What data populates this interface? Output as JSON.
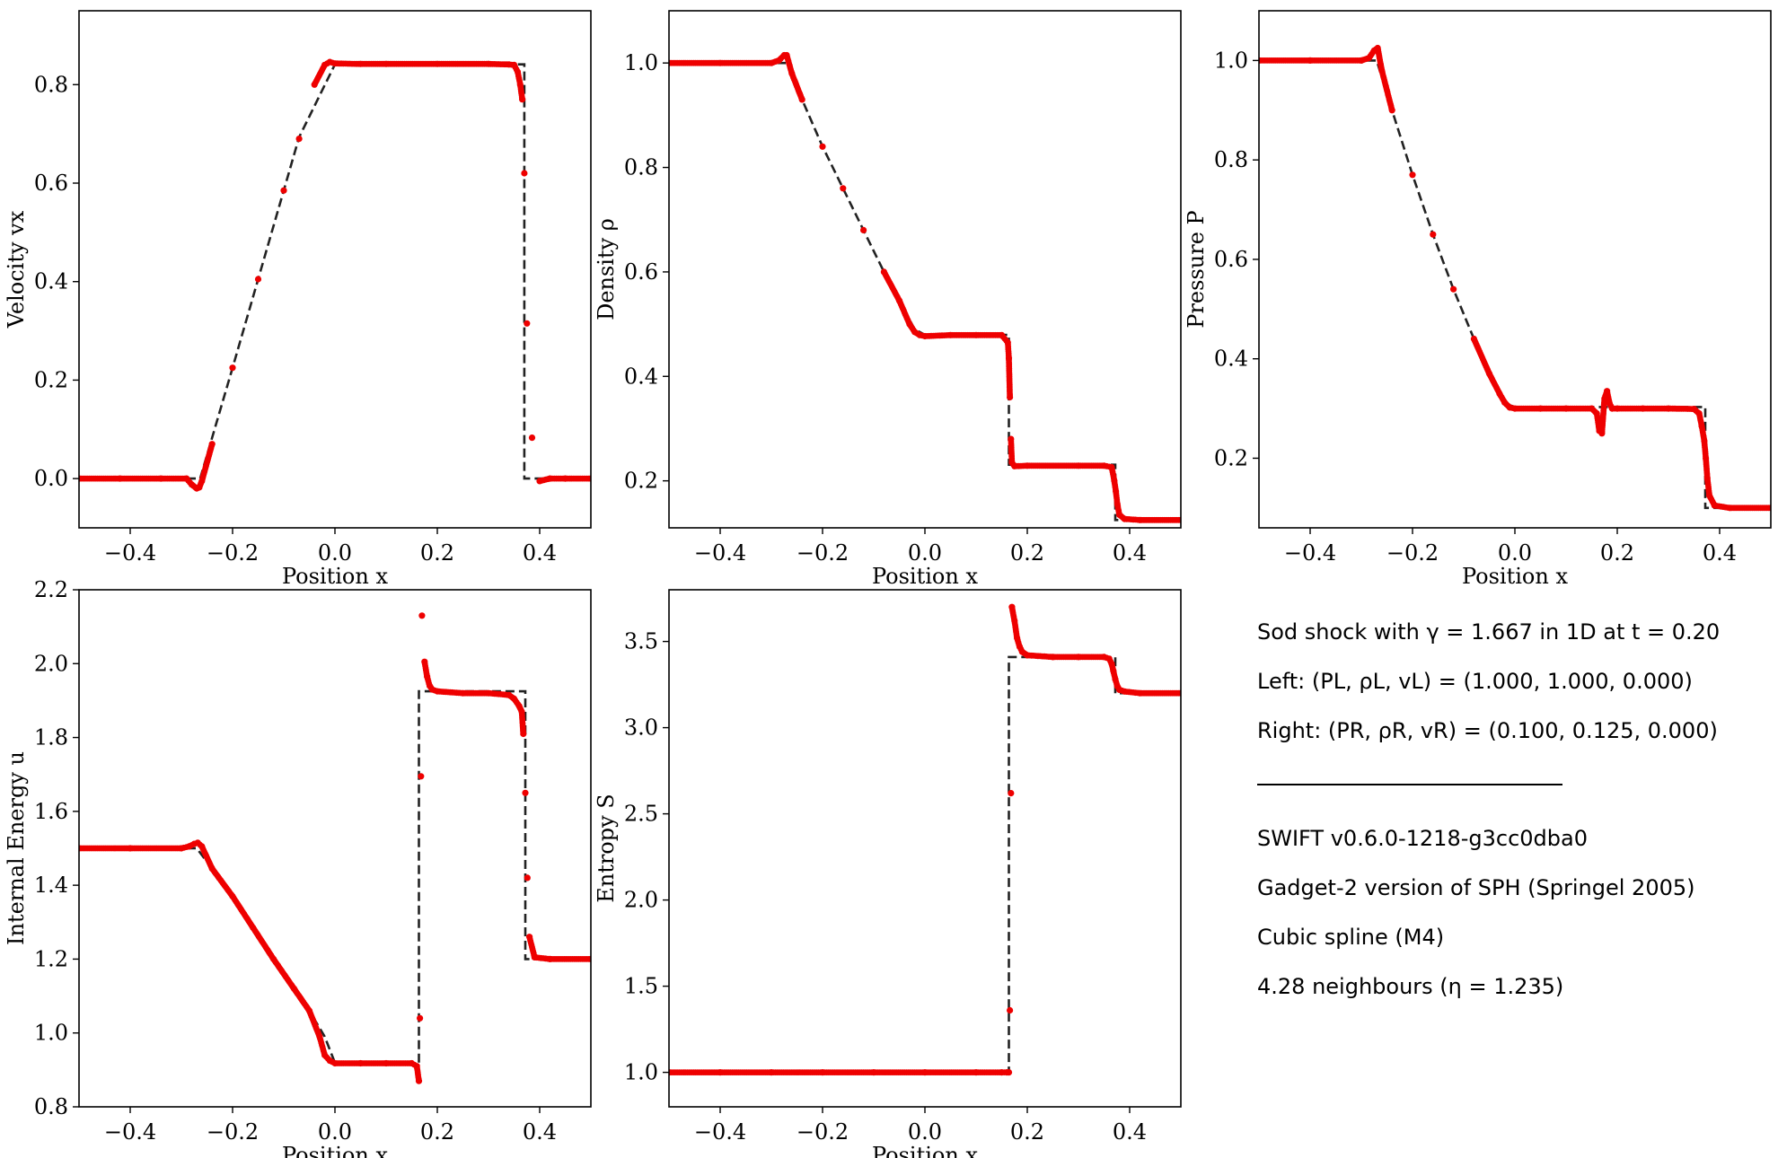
{
  "chart_data": [
    {
      "type": "scatter",
      "xlabel": "Position x",
      "ylabel": "Velocity vx",
      "xlim": [
        -0.5,
        0.5
      ],
      "ylim": [
        -0.1,
        0.95
      ],
      "xticks": [
        "−0.4",
        "−0.2",
        "0.0",
        "0.2",
        "0.4"
      ],
      "xtick_values": [
        -0.4,
        -0.2,
        0.0,
        0.2,
        0.4
      ],
      "yticks": [
        "0.0",
        "0.2",
        "0.4",
        "0.6",
        "0.8"
      ],
      "ytick_values": [
        0.0,
        0.2,
        0.4,
        0.6,
        0.8
      ],
      "series": [
        {
          "kind": "dashed-line",
          "color": "#222222",
          "x": [
            -0.5,
            -0.2856,
            -0.2633,
            -0.2,
            -0.1,
            -0.0702,
            0.0,
            0.1,
            0.2,
            0.3,
            0.37,
            0.37,
            0.5
          ],
          "y": [
            0.0,
            0.0,
            0.0,
            0.225,
            0.585,
            0.6927,
            0.8412,
            0.8412,
            0.8412,
            0.8412,
            0.8412,
            0.0,
            0.0
          ]
        },
        {
          "kind": "dots",
          "color": "#ee0000",
          "x": [
            -0.5,
            -0.42,
            -0.34,
            -0.29,
            -0.28,
            -0.27,
            -0.265,
            -0.26,
            -0.24,
            -0.2,
            -0.15,
            -0.1,
            -0.07,
            -0.04,
            -0.02,
            -0.01,
            0.0,
            0.05,
            0.1,
            0.2,
            0.3,
            0.34,
            0.35,
            0.357,
            0.362,
            0.366,
            0.37,
            0.375,
            0.385,
            0.4,
            0.42,
            0.45,
            0.5
          ],
          "y": [
            0.0,
            0.0,
            0.0,
            0.0,
            -0.012,
            -0.02,
            -0.018,
            -0.005,
            0.07,
            0.225,
            0.405,
            0.585,
            0.69,
            0.8,
            0.84,
            0.846,
            0.843,
            0.842,
            0.842,
            0.842,
            0.842,
            0.841,
            0.84,
            0.826,
            0.8,
            0.77,
            0.62,
            0.315,
            0.083,
            -0.005,
            0.0,
            0.0,
            0.0
          ]
        }
      ]
    },
    {
      "type": "scatter",
      "xlabel": "Position x",
      "ylabel": "Density ρ",
      "xlim": [
        -0.5,
        0.5
      ],
      "ylim": [
        0.11,
        1.1
      ],
      "xticks": [
        "−0.4",
        "−0.2",
        "0.0",
        "0.2",
        "0.4"
      ],
      "xtick_values": [
        -0.4,
        -0.2,
        0.0,
        0.2,
        0.4
      ],
      "yticks": [
        "0.2",
        "0.4",
        "0.6",
        "0.8",
        "1.0"
      ],
      "ytick_values": [
        0.2,
        0.4,
        0.6,
        0.8,
        1.0
      ],
      "series": [
        {
          "kind": "dashed-line",
          "color": "#222222",
          "x": [
            -0.5,
            -0.27,
            -0.24,
            -0.2,
            -0.16,
            -0.12,
            -0.08,
            -0.05,
            -0.02,
            0.0,
            0.1,
            0.164,
            0.164,
            0.2,
            0.3,
            0.372,
            0.372,
            0.5
          ],
          "y": [
            1.0,
            1.0,
            0.93,
            0.84,
            0.76,
            0.68,
            0.6,
            0.545,
            0.49,
            0.4795,
            0.4795,
            0.4795,
            0.2308,
            0.2308,
            0.2308,
            0.2308,
            0.125,
            0.125
          ]
        },
        {
          "kind": "dots",
          "color": "#ee0000",
          "x": [
            -0.5,
            -0.4,
            -0.3,
            -0.285,
            -0.275,
            -0.27,
            -0.26,
            -0.24,
            -0.2,
            -0.16,
            -0.12,
            -0.08,
            -0.05,
            -0.03,
            -0.02,
            -0.01,
            0.0,
            0.05,
            0.1,
            0.15,
            0.162,
            0.164,
            0.166,
            0.168,
            0.17,
            0.175,
            0.2,
            0.3,
            0.35,
            0.365,
            0.37,
            0.373,
            0.376,
            0.38,
            0.39,
            0.42,
            0.5
          ],
          "y": [
            1.0,
            1.0,
            1.0,
            1.005,
            1.015,
            1.015,
            0.98,
            0.93,
            0.84,
            0.76,
            0.68,
            0.6,
            0.545,
            0.5,
            0.485,
            0.479,
            0.477,
            0.479,
            0.479,
            0.479,
            0.465,
            0.435,
            0.36,
            0.28,
            0.235,
            0.228,
            0.229,
            0.229,
            0.229,
            0.226,
            0.2,
            0.18,
            0.155,
            0.135,
            0.127,
            0.125,
            0.125
          ]
        }
      ]
    },
    {
      "type": "scatter",
      "xlabel": "Position x",
      "ylabel": "Pressure P",
      "xlim": [
        -0.5,
        0.5
      ],
      "ylim": [
        0.06,
        1.1
      ],
      "xticks": [
        "−0.4",
        "−0.2",
        "0.0",
        "0.2",
        "0.4"
      ],
      "xtick_values": [
        -0.4,
        -0.2,
        0.0,
        0.2,
        0.4
      ],
      "yticks": [
        "0.2",
        "0.4",
        "0.6",
        "0.8",
        "1.0"
      ],
      "ytick_values": [
        0.2,
        0.4,
        0.6,
        0.8,
        1.0
      ],
      "series": [
        {
          "kind": "dashed-line",
          "color": "#222222",
          "x": [
            -0.5,
            -0.27,
            -0.24,
            -0.2,
            -0.16,
            -0.12,
            -0.08,
            -0.05,
            -0.02,
            0.0,
            0.1,
            0.2,
            0.3,
            0.372,
            0.372,
            0.5
          ],
          "y": [
            1.0,
            1.0,
            0.9,
            0.77,
            0.65,
            0.54,
            0.44,
            0.37,
            0.31,
            0.303,
            0.303,
            0.303,
            0.303,
            0.303,
            0.1,
            0.1
          ]
        },
        {
          "kind": "dots",
          "color": "#ee0000",
          "x": [
            -0.5,
            -0.4,
            -0.3,
            -0.285,
            -0.275,
            -0.268,
            -0.26,
            -0.24,
            -0.2,
            -0.16,
            -0.12,
            -0.08,
            -0.05,
            -0.03,
            -0.02,
            -0.01,
            0.0,
            0.05,
            0.1,
            0.15,
            0.16,
            0.165,
            0.17,
            0.175,
            0.18,
            0.185,
            0.19,
            0.2,
            0.25,
            0.3,
            0.35,
            0.36,
            0.365,
            0.37,
            0.373,
            0.376,
            0.38,
            0.39,
            0.42,
            0.5
          ],
          "y": [
            1.0,
            1.0,
            1.0,
            1.005,
            1.02,
            1.025,
            0.98,
            0.9,
            0.77,
            0.65,
            0.54,
            0.44,
            0.37,
            0.33,
            0.312,
            0.302,
            0.3,
            0.3,
            0.3,
            0.3,
            0.29,
            0.255,
            0.25,
            0.32,
            0.335,
            0.31,
            0.3,
            0.3,
            0.3,
            0.3,
            0.299,
            0.29,
            0.265,
            0.235,
            0.2,
            0.16,
            0.125,
            0.105,
            0.1,
            0.1
          ]
        }
      ]
    },
    {
      "type": "scatter",
      "xlabel": "Position x",
      "ylabel": "Internal Energy u",
      "xlim": [
        -0.5,
        0.5
      ],
      "ylim": [
        0.8,
        2.2
      ],
      "xticks": [
        "−0.4",
        "−0.2",
        "0.0",
        "0.2",
        "0.4"
      ],
      "xtick_values": [
        -0.4,
        -0.2,
        0.0,
        0.2,
        0.4
      ],
      "yticks": [
        "0.8",
        "1.0",
        "1.2",
        "1.4",
        "1.6",
        "1.8",
        "2.0",
        "2.2"
      ],
      "ytick_values": [
        0.8,
        1.0,
        1.2,
        1.4,
        1.6,
        1.8,
        2.0,
        2.2
      ],
      "series": [
        {
          "kind": "dashed-line",
          "color": "#222222",
          "x": [
            -0.5,
            -0.27,
            -0.24,
            -0.2,
            -0.16,
            -0.12,
            -0.08,
            -0.05,
            -0.02,
            0.0,
            0.1,
            0.164,
            0.164,
            0.2,
            0.3,
            0.372,
            0.372,
            0.5
          ],
          "y": [
            1.5,
            1.5,
            1.445,
            1.37,
            1.285,
            1.2,
            1.12,
            1.06,
            0.99,
            0.919,
            0.919,
            0.919,
            1.925,
            1.925,
            1.925,
            1.925,
            1.2,
            1.2
          ]
        },
        {
          "kind": "dots",
          "color": "#ee0000",
          "x": [
            -0.5,
            -0.4,
            -0.3,
            -0.285,
            -0.275,
            -0.268,
            -0.26,
            -0.24,
            -0.2,
            -0.16,
            -0.12,
            -0.08,
            -0.05,
            -0.03,
            -0.02,
            -0.01,
            0.0,
            0.05,
            0.1,
            0.15,
            0.16,
            0.164,
            0.166,
            0.168,
            0.17,
            0.175,
            0.18,
            0.185,
            0.19,
            0.2,
            0.25,
            0.3,
            0.34,
            0.35,
            0.36,
            0.365,
            0.368,
            0.372,
            0.376,
            0.38,
            0.39,
            0.42,
            0.5
          ],
          "y": [
            1.5,
            1.5,
            1.5,
            1.505,
            1.512,
            1.515,
            1.505,
            1.445,
            1.37,
            1.285,
            1.2,
            1.12,
            1.06,
            0.99,
            0.94,
            0.925,
            0.918,
            0.918,
            0.918,
            0.918,
            0.91,
            0.87,
            1.04,
            1.695,
            2.13,
            2.005,
            1.965,
            1.94,
            1.93,
            1.925,
            1.92,
            1.92,
            1.915,
            1.905,
            1.885,
            1.87,
            1.81,
            1.65,
            1.42,
            1.26,
            1.205,
            1.2,
            1.2
          ]
        }
      ]
    },
    {
      "type": "scatter",
      "xlabel": "Position x",
      "ylabel": "Entropy S",
      "xlim": [
        -0.5,
        0.5
      ],
      "ylim": [
        0.8,
        3.8
      ],
      "xticks": [
        "−0.4",
        "−0.2",
        "0.0",
        "0.2",
        "0.4"
      ],
      "xtick_values": [
        -0.4,
        -0.2,
        0.0,
        0.2,
        0.4
      ],
      "yticks": [
        "1.0",
        "1.5",
        "2.0",
        "2.5",
        "3.0",
        "3.5"
      ],
      "ytick_values": [
        1.0,
        1.5,
        2.0,
        2.5,
        3.0,
        3.5
      ],
      "series": [
        {
          "kind": "dashed-line",
          "color": "#222222",
          "x": [
            -0.5,
            0.164,
            0.164,
            0.2,
            0.3,
            0.372,
            0.372,
            0.5
          ],
          "y": [
            1.0,
            1.0,
            3.41,
            3.41,
            3.41,
            3.41,
            3.2,
            3.2
          ]
        },
        {
          "kind": "dots",
          "color": "#ee0000",
          "x": [
            -0.5,
            -0.4,
            -0.3,
            -0.2,
            -0.1,
            0.0,
            0.1,
            0.15,
            0.16,
            0.164,
            0.166,
            0.168,
            0.17,
            0.175,
            0.18,
            0.185,
            0.19,
            0.2,
            0.25,
            0.3,
            0.35,
            0.36,
            0.365,
            0.368,
            0.372,
            0.376,
            0.38,
            0.39,
            0.42,
            0.5
          ],
          "y": [
            1.0,
            1.0,
            1.0,
            1.0,
            1.0,
            1.0,
            1.0,
            1.0,
            1.0,
            1.0,
            1.36,
            2.62,
            3.7,
            3.62,
            3.52,
            3.47,
            3.44,
            3.42,
            3.41,
            3.41,
            3.41,
            3.4,
            3.37,
            3.33,
            3.28,
            3.24,
            3.22,
            3.21,
            3.2,
            3.2
          ]
        }
      ]
    }
  ],
  "info": {
    "lines": [
      "Sod shock with γ = 1.667 in 1D at t = 0.20",
      "Left:   (PL, ρL, vL) = (1.000, 1.000, 0.000)",
      "Right: (PR, ρR, vR) = (0.100, 0.125, 0.000)"
    ],
    "lines_after_rule": [
      "SWIFT v0.6.0-1218-g3cc0dba0",
      "Gadget-2 version of SPH (Springel 2005)",
      "Cubic spline (M4)",
      "4.28 neighbours (η = 1.235)"
    ]
  },
  "colors": {
    "data_points": "#ee0000",
    "analytic_line": "#222222",
    "axes": "#000000"
  }
}
